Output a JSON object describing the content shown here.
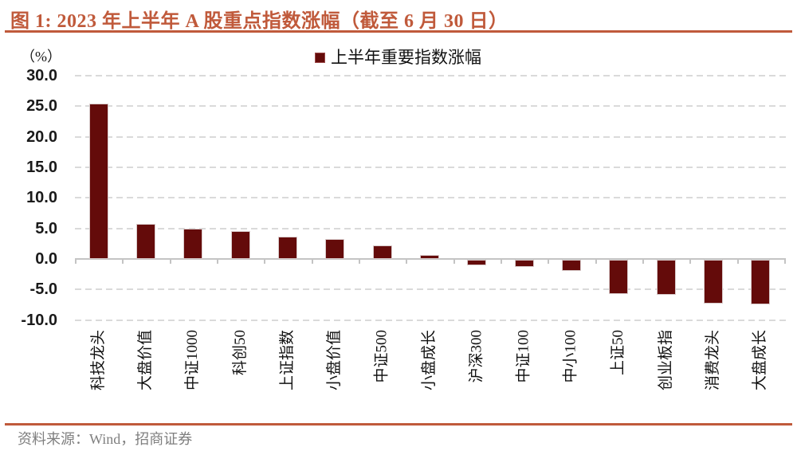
{
  "figure": {
    "title": "图 1: 2023 年上半年 A 股重点指数涨幅（截至 6 月 30 日）",
    "source": "资料来源：Wind，招商证券",
    "accent_color": "#C05A3B"
  },
  "chart_data": {
    "type": "bar",
    "title": "2023 年上半年 A 股重点指数涨幅（截至 6 月 30 日）",
    "unit_label": "（%）",
    "legend": [
      "上半年重要指数涨幅"
    ],
    "legend_position": "top-center",
    "categories": [
      "科技龙头",
      "大盘价值",
      "中证1000",
      "科创50",
      "上证指数",
      "小盘价值",
      "中证500",
      "小盘成长",
      "沪深300",
      "中证100",
      "中小100",
      "上证50",
      "创业板指",
      "消费龙头",
      "大盘成长"
    ],
    "values": [
      25.5,
      5.8,
      5.0,
      4.6,
      3.6,
      3.3,
      2.2,
      0.7,
      -0.9,
      -1.2,
      -1.8,
      -5.6,
      -5.8,
      -7.2,
      -7.3
    ],
    "xlabel": "",
    "ylabel": "（%）",
    "ylim": [
      -10,
      30
    ],
    "ytick_interval": 5,
    "ytick_values": [
      30,
      25,
      20,
      15,
      10,
      5,
      0,
      -5,
      -10
    ],
    "ytick_labels": [
      "30.0",
      "25.0",
      "20.0",
      "15.0",
      "10.0",
      "5.0",
      "0.0",
      "-5.0",
      "-10.0"
    ],
    "grid": "dashed-horizontal",
    "bar_color": "#640B0A",
    "gridline_color": "#DADADA",
    "axis_color": "#C4C4C4"
  }
}
